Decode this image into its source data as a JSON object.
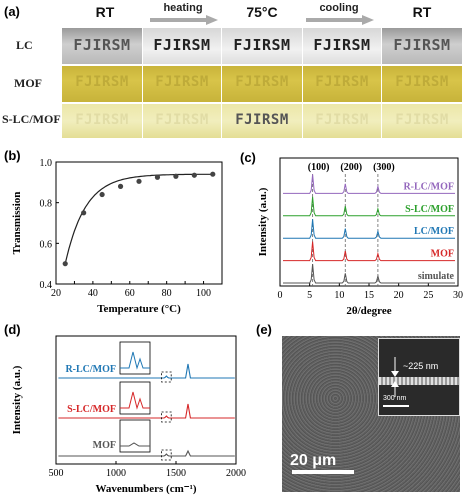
{
  "panel_a": {
    "label": "(a)",
    "columns": [
      "RT",
      "75°C",
      "RT"
    ],
    "arrows": [
      "heating",
      "cooling"
    ],
    "rows": [
      "LC",
      "MOF",
      "S-LC/MOF"
    ],
    "pattern_text": "FJIRSM",
    "colors": {
      "lc": "#b9b9b9",
      "mof": "#d2bd42",
      "slc": "#ece7a8"
    }
  },
  "panel_b": {
    "label": "(b)",
    "chart_data": {
      "type": "line",
      "xlabel": "Temperature (°C)",
      "ylabel": "Transmission",
      "xlim": [
        20,
        110
      ],
      "ylim": [
        0.4,
        1.0
      ],
      "xticks": [
        20,
        30,
        40,
        50,
        60,
        70,
        80,
        90,
        100,
        110
      ],
      "yticks": [
        0.4,
        0.6,
        0.8,
        1.0
      ],
      "points": [
        [
          25,
          0.5
        ],
        [
          35,
          0.75
        ],
        [
          45,
          0.84
        ],
        [
          55,
          0.88
        ],
        [
          65,
          0.905
        ],
        [
          75,
          0.925
        ],
        [
          85,
          0.93
        ],
        [
          95,
          0.935
        ],
        [
          105,
          0.94
        ]
      ],
      "color": "#222222"
    }
  },
  "panel_c": {
    "label": "(c)",
    "chart_data": {
      "type": "line",
      "xlabel": "2θ/degree",
      "ylabel": "Intensity (a.u.)",
      "xlim": [
        0,
        30
      ],
      "xticks": [
        0,
        5,
        10,
        15,
        20,
        25,
        30
      ],
      "peak_labels": [
        "(100)",
        "(200)",
        "(300)"
      ],
      "peak_positions": [
        5.5,
        11.0,
        16.5
      ],
      "series": [
        {
          "name": "R-LC/MOF",
          "color": "#9467bd"
        },
        {
          "name": "S-LC/MOF",
          "color": "#2ca02c"
        },
        {
          "name": "LC/MOF",
          "color": "#1f77b4"
        },
        {
          "name": "MOF",
          "color": "#d62728"
        },
        {
          "name": "simulate",
          "color": "#555555"
        }
      ]
    }
  },
  "panel_d": {
    "label": "(d)",
    "chart_data": {
      "type": "line",
      "xlabel": "Wavenumbers (cm⁻¹)",
      "ylabel": "Intensity (a.u.)",
      "xlim": [
        500,
        2000
      ],
      "xticks": [
        500,
        1000,
        1500,
        2000
      ],
      "series": [
        {
          "name": "R-LC/MOF",
          "color": "#1f77b4"
        },
        {
          "name": "S-LC/MOF",
          "color": "#d62728"
        },
        {
          "name": "MOF",
          "color": "#555555"
        }
      ]
    }
  },
  "panel_e": {
    "label": "(e)",
    "scale_bar": "20 μm",
    "inset_scale": "300 nm",
    "inset_measure": "~225 nm"
  }
}
